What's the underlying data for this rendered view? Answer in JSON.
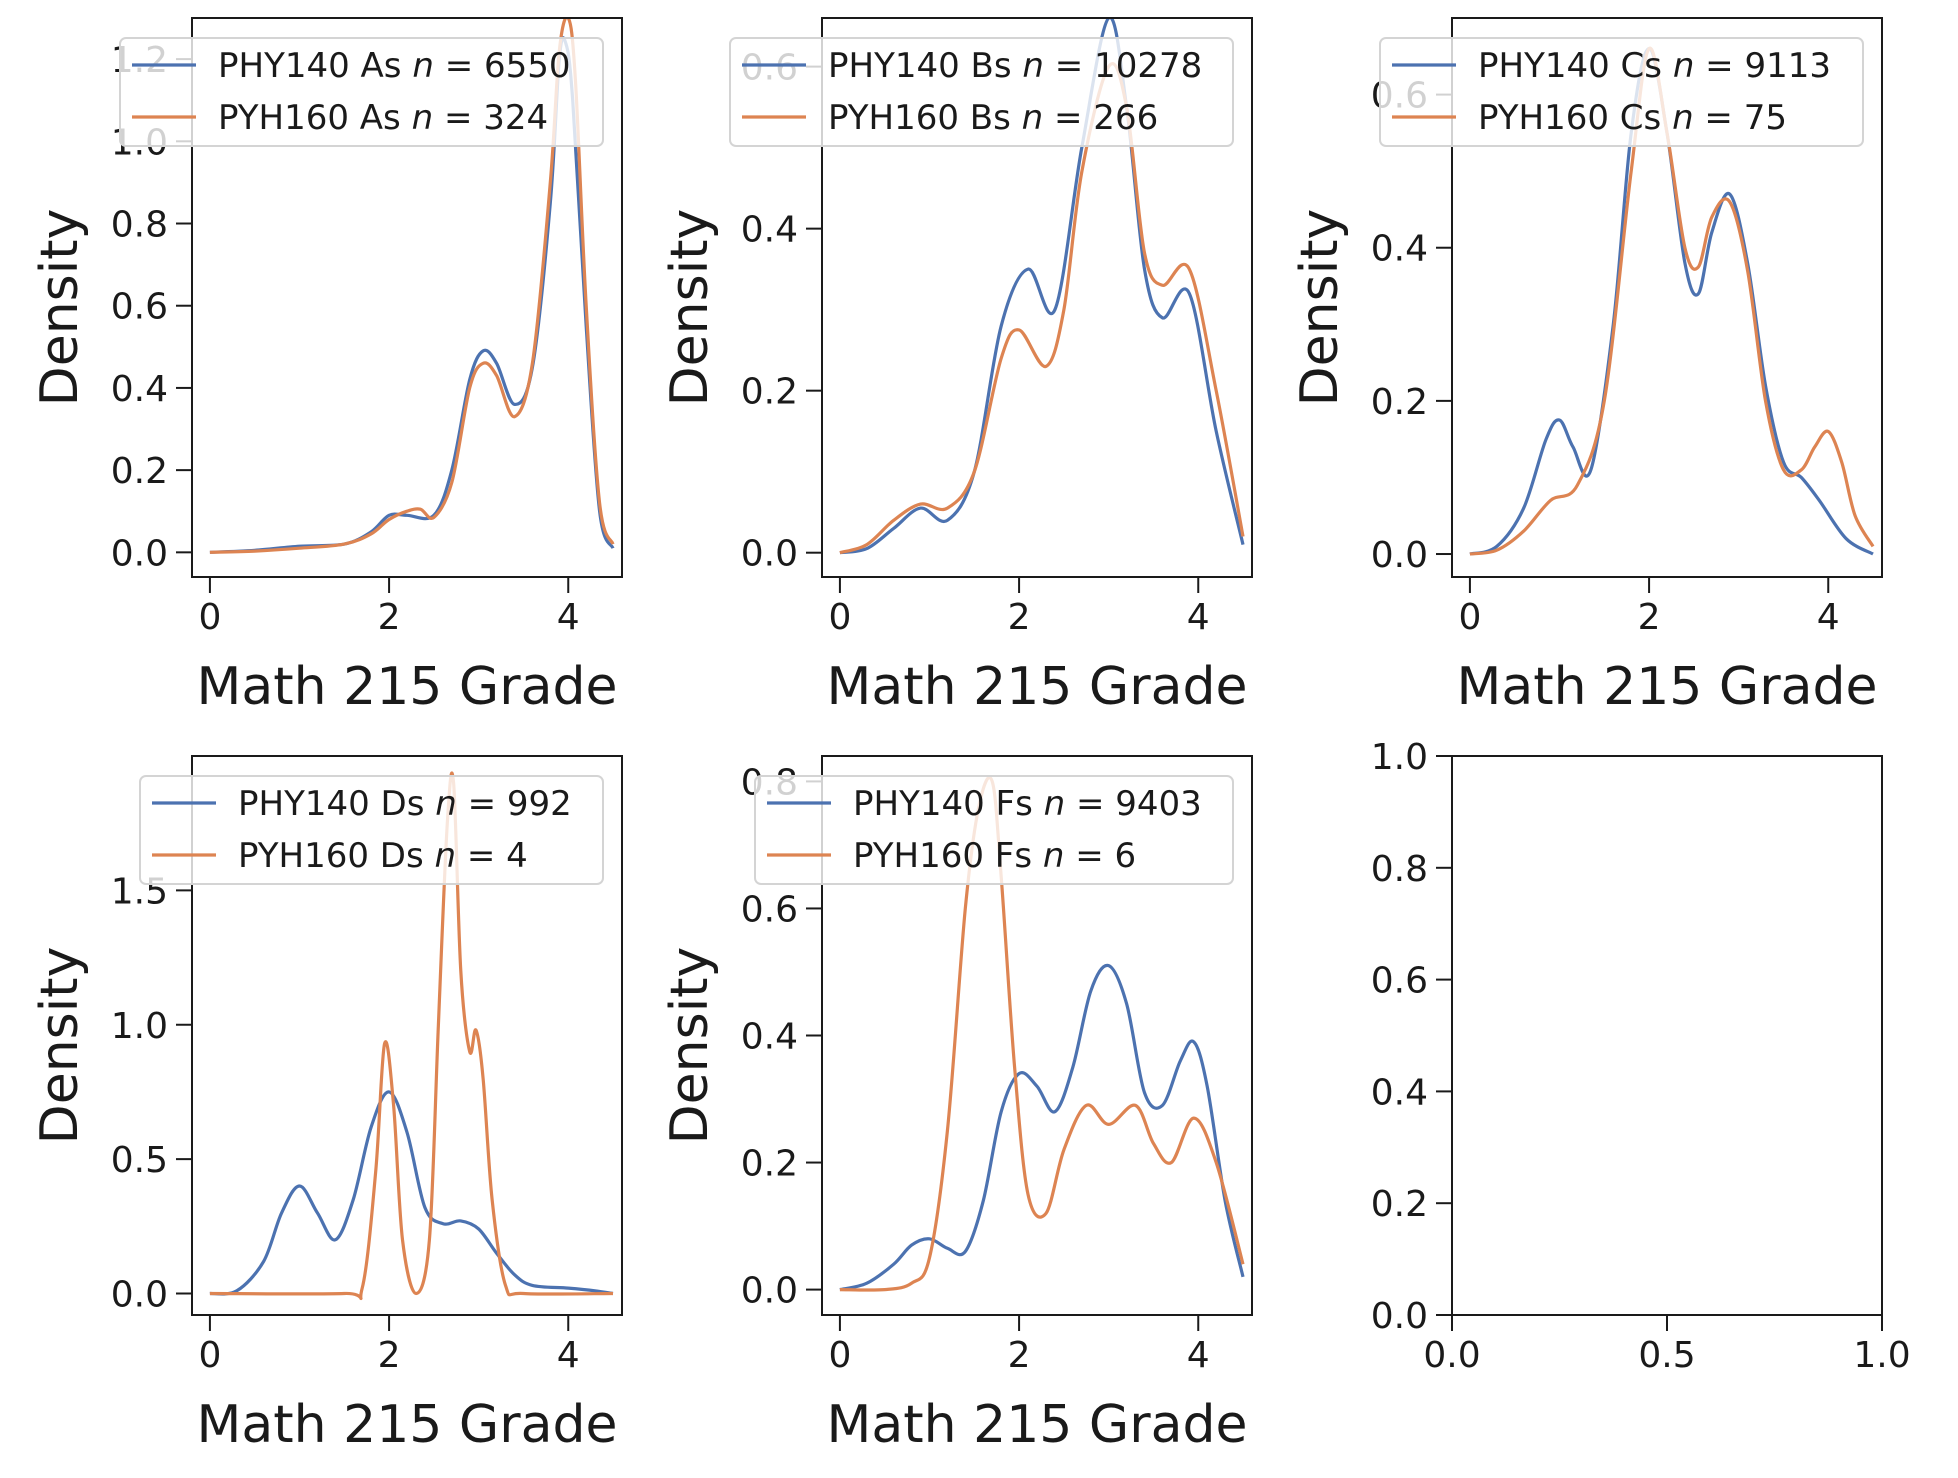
{
  "chart_data": [
    {
      "type": "line",
      "xlabel": "Math 215 Grade",
      "ylabel": "Density",
      "xlim": [
        -0.2,
        4.6
      ],
      "ylim": [
        -0.06,
        1.3
      ],
      "xticks": [
        0,
        2,
        4
      ],
      "yticks": [
        0.0,
        0.2,
        0.4,
        0.6,
        0.8,
        1.0,
        1.2
      ],
      "ytick_labels": [
        "0.0",
        "0.2",
        "0.4",
        "0.6",
        "0.8",
        "1.0",
        "1.2"
      ],
      "legend": "top",
      "series": [
        {
          "label": "PHY140 As",
          "n": "6550",
          "color": "#4c72b0",
          "x": [
            0,
            0.5,
            1.0,
            1.5,
            1.8,
            2.0,
            2.2,
            2.5,
            2.7,
            2.9,
            3.05,
            3.2,
            3.4,
            3.6,
            3.8,
            3.9,
            3.97,
            4.05,
            4.2,
            4.35,
            4.5
          ],
          "y": [
            0.0,
            0.005,
            0.015,
            0.02,
            0.05,
            0.09,
            0.09,
            0.09,
            0.2,
            0.42,
            0.49,
            0.46,
            0.36,
            0.45,
            0.85,
            1.2,
            1.24,
            1.1,
            0.55,
            0.1,
            0.01
          ]
        },
        {
          "label": "PYH160 As",
          "n": "324",
          "color": "#dd8452",
          "x": [
            0,
            0.5,
            1.0,
            1.5,
            1.8,
            2.0,
            2.2,
            2.35,
            2.5,
            2.7,
            2.9,
            3.05,
            3.2,
            3.4,
            3.6,
            3.8,
            3.9,
            4.0,
            4.08,
            4.2,
            4.35,
            4.5
          ],
          "y": [
            0.0,
            0.003,
            0.01,
            0.02,
            0.045,
            0.08,
            0.1,
            0.105,
            0.085,
            0.17,
            0.4,
            0.46,
            0.43,
            0.33,
            0.46,
            0.9,
            1.22,
            1.3,
            1.15,
            0.6,
            0.12,
            0.02
          ]
        }
      ]
    },
    {
      "type": "line",
      "xlabel": "Math 215 Grade",
      "ylabel": "Density",
      "xlim": [
        -0.2,
        4.6
      ],
      "ylim": [
        -0.03,
        0.66
      ],
      "xticks": [
        0,
        2,
        4
      ],
      "yticks": [
        0.0,
        0.2,
        0.4,
        0.6
      ],
      "ytick_labels": [
        "0.0",
        "0.2",
        "0.4",
        "0.6"
      ],
      "legend": "top",
      "series": [
        {
          "label": "PHY140 Bs",
          "n": "10278",
          "color": "#4c72b0",
          "x": [
            0,
            0.3,
            0.6,
            0.9,
            1.2,
            1.5,
            1.8,
            2.1,
            2.4,
            2.7,
            3.0,
            3.2,
            3.4,
            3.6,
            3.9,
            4.2,
            4.5
          ],
          "y": [
            0.0,
            0.005,
            0.03,
            0.055,
            0.04,
            0.1,
            0.28,
            0.35,
            0.3,
            0.5,
            0.66,
            0.55,
            0.35,
            0.29,
            0.32,
            0.15,
            0.01
          ]
        },
        {
          "label": "PYH160 Bs",
          "n": "266",
          "color": "#dd8452",
          "x": [
            0,
            0.3,
            0.6,
            0.9,
            1.2,
            1.5,
            1.8,
            2.0,
            2.3,
            2.5,
            2.7,
            3.0,
            3.2,
            3.4,
            3.6,
            3.9,
            4.2,
            4.5
          ],
          "y": [
            0.0,
            0.01,
            0.04,
            0.06,
            0.055,
            0.1,
            0.24,
            0.275,
            0.23,
            0.3,
            0.47,
            0.6,
            0.55,
            0.37,
            0.33,
            0.35,
            0.2,
            0.02
          ]
        }
      ]
    },
    {
      "type": "line",
      "xlabel": "Math 215 Grade",
      "ylabel": "Density",
      "xlim": [
        -0.2,
        4.6
      ],
      "ylim": [
        -0.03,
        0.7
      ],
      "xticks": [
        0,
        2,
        4
      ],
      "yticks": [
        0.0,
        0.2,
        0.4,
        0.6
      ],
      "ytick_labels": [
        "0.0",
        "0.2",
        "0.4",
        "0.6"
      ],
      "legend": "top",
      "series": [
        {
          "label": "PHY140 Cs",
          "n": "9113",
          "color": "#4c72b0",
          "x": [
            0,
            0.3,
            0.6,
            0.85,
            1.0,
            1.15,
            1.35,
            1.6,
            1.8,
            2.0,
            2.2,
            2.4,
            2.55,
            2.7,
            2.9,
            3.1,
            3.3,
            3.5,
            3.7,
            3.9,
            4.2,
            4.5
          ],
          "y": [
            0.0,
            0.01,
            0.06,
            0.15,
            0.175,
            0.14,
            0.11,
            0.3,
            0.55,
            0.66,
            0.55,
            0.38,
            0.34,
            0.42,
            0.47,
            0.38,
            0.22,
            0.12,
            0.1,
            0.07,
            0.02,
            0.0
          ]
        },
        {
          "label": "PYH160 Cs",
          "n": "75",
          "color": "#dd8452",
          "x": [
            0,
            0.3,
            0.6,
            0.9,
            1.2,
            1.5,
            1.8,
            2.0,
            2.2,
            2.4,
            2.55,
            2.7,
            2.9,
            3.1,
            3.3,
            3.5,
            3.7,
            3.85,
            4.0,
            4.15,
            4.3,
            4.5
          ],
          "y": [
            0.0,
            0.005,
            0.03,
            0.07,
            0.09,
            0.2,
            0.5,
            0.66,
            0.55,
            0.4,
            0.375,
            0.44,
            0.46,
            0.37,
            0.2,
            0.11,
            0.11,
            0.14,
            0.16,
            0.12,
            0.05,
            0.01
          ]
        }
      ]
    },
    {
      "type": "line",
      "xlabel": "Math 215 Grade",
      "ylabel": "Density",
      "xlim": [
        -0.2,
        4.6
      ],
      "ylim": [
        -0.08,
        2.0
      ],
      "xticks": [
        0,
        2,
        4
      ],
      "yticks": [
        0.0,
        0.5,
        1.0,
        1.5
      ],
      "ytick_labels": [
        "0.0",
        "0.5",
        "1.0",
        "1.5"
      ],
      "legend": "top",
      "series": [
        {
          "label": "PHY140 Ds",
          "n": "992",
          "color": "#4c72b0",
          "x": [
            0,
            0.3,
            0.6,
            0.8,
            1.0,
            1.2,
            1.4,
            1.6,
            1.8,
            2.0,
            2.2,
            2.4,
            2.6,
            2.8,
            3.0,
            3.2,
            3.4,
            3.6,
            4.0,
            4.3,
            4.5
          ],
          "y": [
            0.0,
            0.01,
            0.12,
            0.3,
            0.4,
            0.3,
            0.2,
            0.35,
            0.62,
            0.75,
            0.6,
            0.32,
            0.26,
            0.27,
            0.24,
            0.15,
            0.07,
            0.03,
            0.02,
            0.01,
            0.0
          ]
        },
        {
          "label": "PYH160 Ds",
          "n": "4",
          "color": "#dd8452",
          "x": [
            0,
            1.5,
            1.7,
            1.85,
            1.95,
            2.05,
            2.15,
            2.3,
            2.45,
            2.55,
            2.65,
            2.72,
            2.8,
            2.9,
            2.97,
            3.05,
            3.15,
            3.3,
            3.5,
            4.5
          ],
          "y": [
            0.0,
            0.0,
            0.02,
            0.45,
            0.93,
            0.7,
            0.2,
            0.0,
            0.2,
            1.0,
            1.75,
            1.9,
            1.2,
            0.9,
            0.98,
            0.8,
            0.35,
            0.03,
            0.0,
            0.0
          ]
        }
      ]
    },
    {
      "type": "line",
      "xlabel": "Math 215 Grade",
      "ylabel": "Density",
      "xlim": [
        -0.2,
        4.6
      ],
      "ylim": [
        -0.04,
        0.84
      ],
      "xticks": [
        0,
        2,
        4
      ],
      "yticks": [
        0.0,
        0.2,
        0.4,
        0.6,
        0.8
      ],
      "ytick_labels": [
        "0.0",
        "0.2",
        "0.4",
        "0.6",
        "0.8"
      ],
      "legend": "top",
      "series": [
        {
          "label": "PHY140 Fs",
          "n": "9403",
          "color": "#4c72b0",
          "x": [
            0,
            0.3,
            0.6,
            0.8,
            1.0,
            1.2,
            1.4,
            1.6,
            1.8,
            2.0,
            2.2,
            2.4,
            2.6,
            2.8,
            3.0,
            3.2,
            3.4,
            3.6,
            3.8,
            3.95,
            4.1,
            4.3,
            4.5
          ],
          "y": [
            0.0,
            0.01,
            0.04,
            0.07,
            0.08,
            0.065,
            0.06,
            0.14,
            0.28,
            0.34,
            0.32,
            0.28,
            0.35,
            0.47,
            0.51,
            0.45,
            0.31,
            0.29,
            0.36,
            0.39,
            0.32,
            0.14,
            0.02
          ]
        },
        {
          "label": "PYH160 Fs",
          "n": "6",
          "color": "#dd8452",
          "x": [
            0,
            0.5,
            0.8,
            1.0,
            1.2,
            1.4,
            1.55,
            1.7,
            1.8,
            1.95,
            2.1,
            2.3,
            2.5,
            2.75,
            3.0,
            3.3,
            3.5,
            3.7,
            3.95,
            4.2,
            4.5
          ],
          "y": [
            0.0,
            0.0,
            0.01,
            0.05,
            0.25,
            0.6,
            0.76,
            0.8,
            0.65,
            0.35,
            0.15,
            0.12,
            0.22,
            0.29,
            0.26,
            0.29,
            0.23,
            0.2,
            0.27,
            0.2,
            0.04
          ]
        }
      ]
    },
    {
      "type": "line",
      "xlim": [
        0.0,
        1.0
      ],
      "ylim": [
        0.0,
        1.0
      ],
      "xticks": [
        0.0,
        0.5,
        1.0
      ],
      "xtick_labels": [
        "0.0",
        "0.5",
        "1.0"
      ],
      "yticks": [
        0.0,
        0.2,
        0.4,
        0.6,
        0.8,
        1.0
      ],
      "ytick_labels": [
        "0.0",
        "0.2",
        "0.4",
        "0.6",
        "0.8",
        "1.0"
      ],
      "series": []
    }
  ]
}
